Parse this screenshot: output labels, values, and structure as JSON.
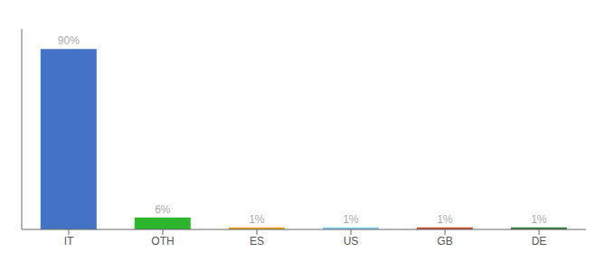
{
  "chart_data": {
    "type": "bar",
    "categories": [
      "IT",
      "OTH",
      "ES",
      "US",
      "GB",
      "DE"
    ],
    "values": [
      90,
      6,
      1,
      1,
      1,
      1
    ],
    "value_labels": [
      "90%",
      "6%",
      "1%",
      "1%",
      "1%",
      "1%"
    ],
    "colors": [
      "#4472c4",
      "#2db52d",
      "#e8a020",
      "#7ec8e3",
      "#c04a2a",
      "#2d7a3a"
    ],
    "ylim": [
      0,
      100
    ],
    "data_labels": true,
    "tick_labels": "x"
  }
}
